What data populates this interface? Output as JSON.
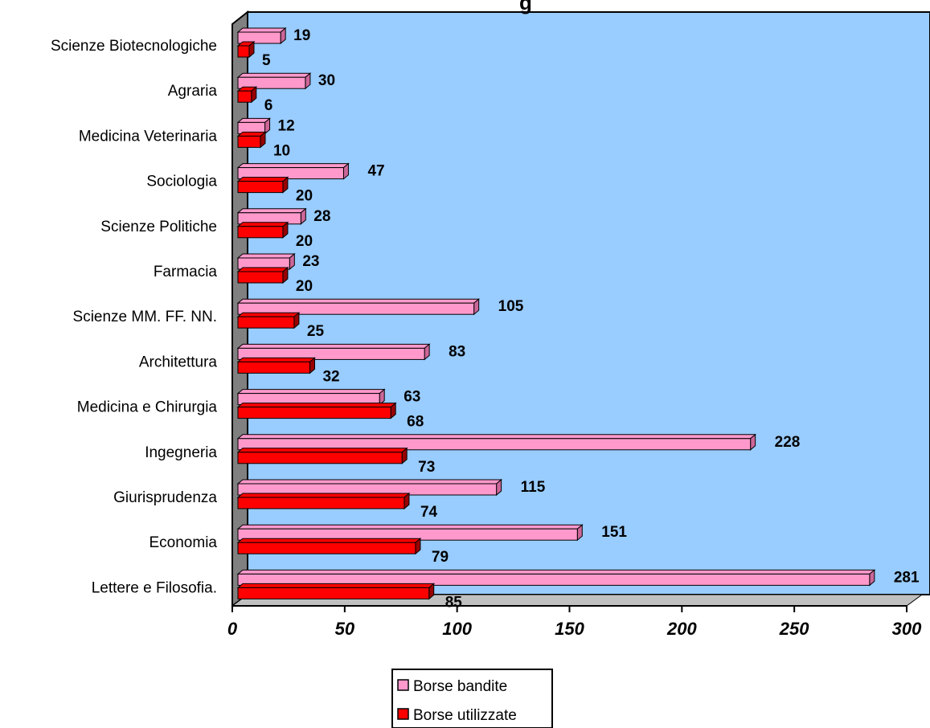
{
  "chart_data": {
    "type": "bar",
    "orientation": "horizontal",
    "title_visible_fragment": "g",
    "categories": [
      "Scienze Biotecnologiche",
      "Agraria",
      "Medicina Veterinaria",
      "Sociologia",
      "Scienze Politiche",
      "Farmacia",
      "Scienze MM. FF. NN.",
      "Architettura",
      "Medicina e Chirurgia",
      "Ingegneria",
      "Giurisprudenza",
      "Economia",
      "Lettere e Filosofia."
    ],
    "series": [
      {
        "name": "Borse bandite",
        "color": "#ff99cc",
        "values": [
          19,
          30,
          12,
          47,
          28,
          23,
          105,
          83,
          63,
          228,
          115,
          151,
          281
        ]
      },
      {
        "name": "Borse utilizzate",
        "color": "#ff0000",
        "values": [
          5,
          6,
          10,
          20,
          20,
          20,
          25,
          32,
          68,
          73,
          74,
          79,
          85
        ]
      }
    ],
    "xlim": [
      0,
      300
    ],
    "xticks": [
      0,
      50,
      100,
      150,
      200,
      250,
      300
    ],
    "plot_background": "#99ccff",
    "grid": false,
    "legend_position": "bottom"
  }
}
